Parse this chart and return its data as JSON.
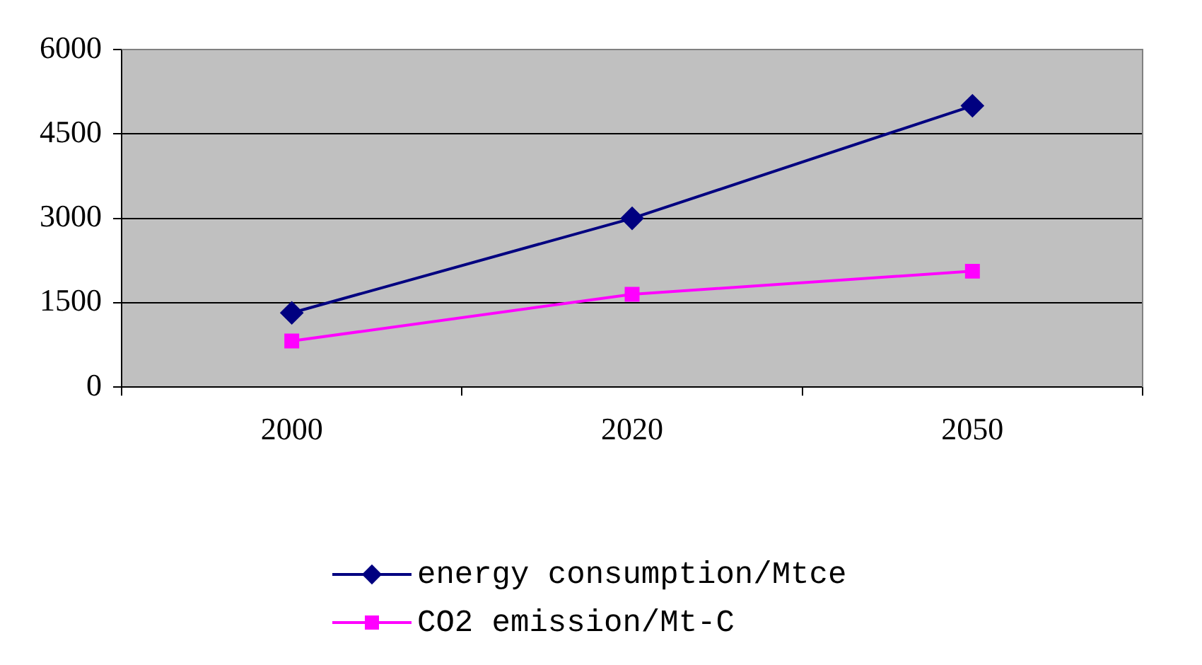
{
  "chart_data": {
    "type": "line",
    "categories": [
      "2000",
      "2020",
      "2050"
    ],
    "series": [
      {
        "name": "energy consumption/Mtce",
        "color": "#000080",
        "marker": "diamond",
        "values": [
          1320,
          3000,
          5000
        ]
      },
      {
        "name": "CO2 emission/Mt-C",
        "color": "#ff00ff",
        "marker": "square",
        "values": [
          820,
          1650,
          2060
        ]
      }
    ],
    "ylim": [
      0,
      6000
    ],
    "yticks": [
      0,
      1500,
      3000,
      4500,
      6000
    ],
    "grid": "y",
    "legend": "bottom"
  }
}
